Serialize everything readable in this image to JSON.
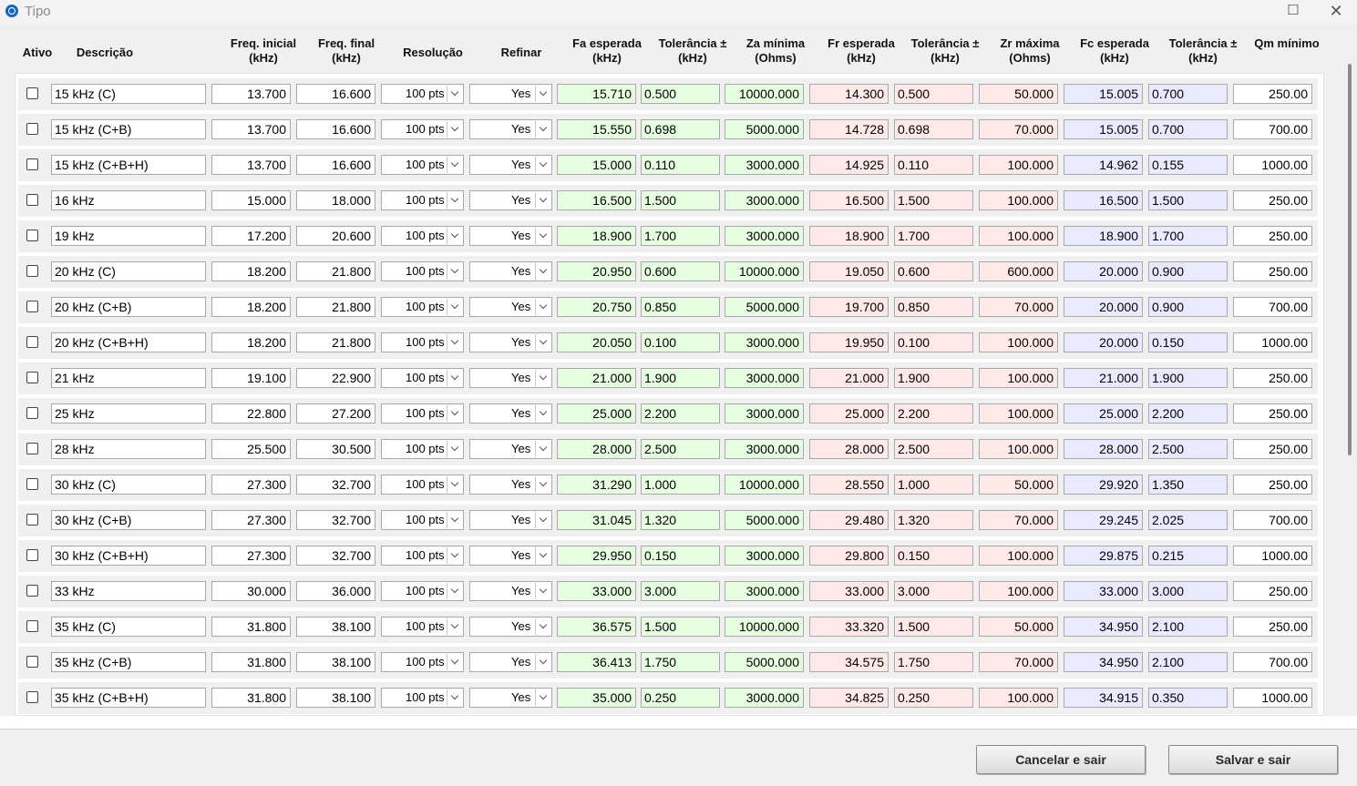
{
  "window": {
    "title": "Tipo"
  },
  "columns": {
    "ativo": "Ativo",
    "descricao": "Descrição",
    "freq_inicial": [
      "Freq. inicial",
      "(kHz)"
    ],
    "freq_final": [
      "Freq. final",
      "(kHz)"
    ],
    "resolucao": "Resolução",
    "refinar": "Refinar",
    "fa_esperada": [
      "Fa esperada",
      "(kHz)"
    ],
    "tol_fa": [
      "Tolerância ±",
      "(kHz)"
    ],
    "za_minima": [
      "Za mínima",
      "(Ohms)"
    ],
    "fr_esperada": [
      "Fr esperada",
      "(kHz)"
    ],
    "tol_fr": [
      "Tolerância ±",
      "(kHz)"
    ],
    "zr_maxima": [
      "Zr máxima",
      "(Ohms)"
    ],
    "fc_esperada": [
      "Fc esperada",
      "(kHz)"
    ],
    "tol_fc": [
      "Tolerância ±",
      "(kHz)"
    ],
    "qm_minimo": "Qm mínimo"
  },
  "rows": [
    {
      "desc": "15 kHz (C)",
      "fi": "13.700",
      "ff": "16.600",
      "res": "100 pts",
      "ref": "Yes",
      "fa": "15.710",
      "tfa": "0.500",
      "za": "10000.000",
      "fr": "14.300",
      "tfr": "0.500",
      "zr": "50.000",
      "fc": "15.005",
      "tfc": "0.700",
      "qm": "250.00"
    },
    {
      "desc": "15 kHz (C+B)",
      "fi": "13.700",
      "ff": "16.600",
      "res": "100 pts",
      "ref": "Yes",
      "fa": "15.550",
      "tfa": "0.698",
      "za": "5000.000",
      "fr": "14.728",
      "tfr": "0.698",
      "zr": "70.000",
      "fc": "15.005",
      "tfc": "0.700",
      "qm": "700.00"
    },
    {
      "desc": "15 kHz (C+B+H)",
      "fi": "13.700",
      "ff": "16.600",
      "res": "100 pts",
      "ref": "Yes",
      "fa": "15.000",
      "tfa": "0.110",
      "za": "3000.000",
      "fr": "14.925",
      "tfr": "0.110",
      "zr": "100.000",
      "fc": "14.962",
      "tfc": "0.155",
      "qm": "1000.00"
    },
    {
      "desc": "16 kHz",
      "fi": "15.000",
      "ff": "18.000",
      "res": "100 pts",
      "ref": "Yes",
      "fa": "16.500",
      "tfa": "1.500",
      "za": "3000.000",
      "fr": "16.500",
      "tfr": "1.500",
      "zr": "100.000",
      "fc": "16.500",
      "tfc": "1.500",
      "qm": "250.00"
    },
    {
      "desc": "19 kHz",
      "fi": "17.200",
      "ff": "20.600",
      "res": "100 pts",
      "ref": "Yes",
      "fa": "18.900",
      "tfa": "1.700",
      "za": "3000.000",
      "fr": "18.900",
      "tfr": "1.700",
      "zr": "100.000",
      "fc": "18.900",
      "tfc": "1.700",
      "qm": "250.00"
    },
    {
      "desc": "20 kHz (C)",
      "fi": "18.200",
      "ff": "21.800",
      "res": "100 pts",
      "ref": "Yes",
      "fa": "20.950",
      "tfa": "0.600",
      "za": "10000.000",
      "fr": "19.050",
      "tfr": "0.600",
      "zr": "600.000",
      "fc": "20.000",
      "tfc": "0.900",
      "qm": "250.00"
    },
    {
      "desc": "20 kHz (C+B)",
      "fi": "18.200",
      "ff": "21.800",
      "res": "100 pts",
      "ref": "Yes",
      "fa": "20.750",
      "tfa": "0.850",
      "za": "5000.000",
      "fr": "19.700",
      "tfr": "0.850",
      "zr": "70.000",
      "fc": "20.000",
      "tfc": "0.900",
      "qm": "700.00"
    },
    {
      "desc": "20 kHz (C+B+H)",
      "fi": "18.200",
      "ff": "21.800",
      "res": "100 pts",
      "ref": "Yes",
      "fa": "20.050",
      "tfa": "0.100",
      "za": "3000.000",
      "fr": "19.950",
      "tfr": "0.100",
      "zr": "100.000",
      "fc": "20.000",
      "tfc": "0.150",
      "qm": "1000.00"
    },
    {
      "desc": "21 kHz",
      "fi": "19.100",
      "ff": "22.900",
      "res": "100 pts",
      "ref": "Yes",
      "fa": "21.000",
      "tfa": "1.900",
      "za": "3000.000",
      "fr": "21.000",
      "tfr": "1.900",
      "zr": "100.000",
      "fc": "21.000",
      "tfc": "1.900",
      "qm": "250.00"
    },
    {
      "desc": "25 kHz",
      "fi": "22.800",
      "ff": "27.200",
      "res": "100 pts",
      "ref": "Yes",
      "fa": "25.000",
      "tfa": "2.200",
      "za": "3000.000",
      "fr": "25.000",
      "tfr": "2.200",
      "zr": "100.000",
      "fc": "25.000",
      "tfc": "2.200",
      "qm": "250.00"
    },
    {
      "desc": "28 kHz",
      "fi": "25.500",
      "ff": "30.500",
      "res": "100 pts",
      "ref": "Yes",
      "fa": "28.000",
      "tfa": "2.500",
      "za": "3000.000",
      "fr": "28.000",
      "tfr": "2.500",
      "zr": "100.000",
      "fc": "28.000",
      "tfc": "2.500",
      "qm": "250.00"
    },
    {
      "desc": "30 kHz (C)",
      "fi": "27.300",
      "ff": "32.700",
      "res": "100 pts",
      "ref": "Yes",
      "fa": "31.290",
      "tfa": "1.000",
      "za": "10000.000",
      "fr": "28.550",
      "tfr": "1.000",
      "zr": "50.000",
      "fc": "29.920",
      "tfc": "1.350",
      "qm": "250.00"
    },
    {
      "desc": "30 kHz (C+B)",
      "fi": "27.300",
      "ff": "32.700",
      "res": "100 pts",
      "ref": "Yes",
      "fa": "31.045",
      "tfa": "1.320",
      "za": "5000.000",
      "fr": "29.480",
      "tfr": "1.320",
      "zr": "70.000",
      "fc": "29.245",
      "tfc": "2.025",
      "qm": "700.00"
    },
    {
      "desc": "30 kHz (C+B+H)",
      "fi": "27.300",
      "ff": "32.700",
      "res": "100 pts",
      "ref": "Yes",
      "fa": "29.950",
      "tfa": "0.150",
      "za": "3000.000",
      "fr": "29.800",
      "tfr": "0.150",
      "zr": "100.000",
      "fc": "29.875",
      "tfc": "0.215",
      "qm": "1000.00"
    },
    {
      "desc": "33 kHz",
      "fi": "30.000",
      "ff": "36.000",
      "res": "100 pts",
      "ref": "Yes",
      "fa": "33.000",
      "tfa": "3.000",
      "za": "3000.000",
      "fr": "33.000",
      "tfr": "3.000",
      "zr": "100.000",
      "fc": "33.000",
      "tfc": "3.000",
      "qm": "250.00"
    },
    {
      "desc": "35 kHz (C)",
      "fi": "31.800",
      "ff": "38.100",
      "res": "100 pts",
      "ref": "Yes",
      "fa": "36.575",
      "tfa": "1.500",
      "za": "10000.000",
      "fr": "33.320",
      "tfr": "1.500",
      "zr": "50.000",
      "fc": "34.950",
      "tfc": "2.100",
      "qm": "250.00"
    },
    {
      "desc": "35 kHz (C+B)",
      "fi": "31.800",
      "ff": "38.100",
      "res": "100 pts",
      "ref": "Yes",
      "fa": "36.413",
      "tfa": "1.750",
      "za": "5000.000",
      "fr": "34.575",
      "tfr": "1.750",
      "zr": "70.000",
      "fc": "34.950",
      "tfc": "2.100",
      "qm": "700.00"
    },
    {
      "desc": "35 kHz (C+B+H)",
      "fi": "31.800",
      "ff": "38.100",
      "res": "100 pts",
      "ref": "Yes",
      "fa": "35.000",
      "tfa": "0.250",
      "za": "3000.000",
      "fr": "34.825",
      "tfr": "0.250",
      "zr": "100.000",
      "fc": "34.915",
      "tfc": "0.350",
      "qm": "1000.00"
    }
  ],
  "buttons": {
    "cancel": "Cancelar e sair",
    "save": "Salvar e sair"
  },
  "colors": {
    "fa_bg": "#e6ffe0",
    "fr_bg": "#ffe8e8",
    "fc_bg": "#e9e9ff"
  },
  "icons": {
    "app": "app-logo-icon",
    "maximize": "maximize-icon",
    "close": "close-icon",
    "dropdown": "chevron-down-icon"
  }
}
